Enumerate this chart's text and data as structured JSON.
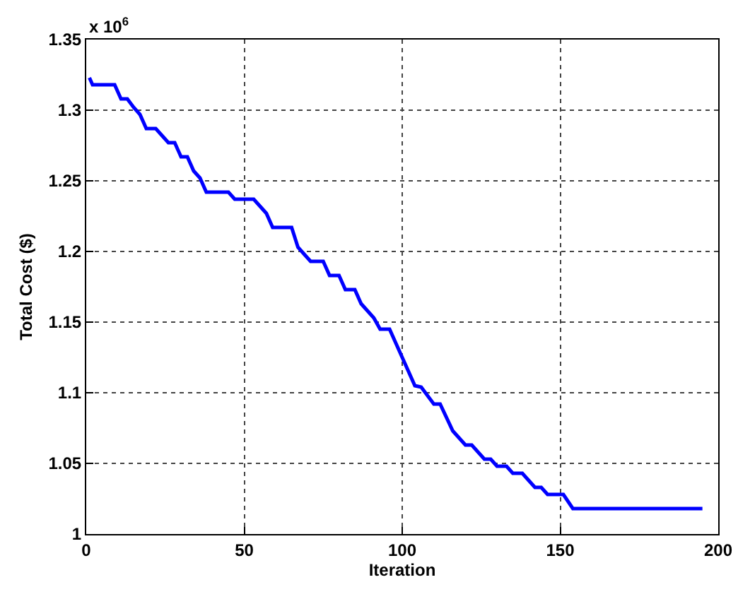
{
  "chart_data": {
    "type": "line",
    "xlabel": "Iteration",
    "ylabel": "Total Cost ($)",
    "annotations": [
      "x 10$^{6}$"
    ],
    "x": [
      1,
      2,
      9,
      11,
      13,
      15,
      17,
      19,
      22,
      24,
      26,
      28,
      30,
      32,
      34,
      36,
      38,
      45,
      47,
      53,
      55,
      57,
      59,
      65,
      67,
      69,
      71,
      75,
      77,
      80,
      82,
      85,
      87,
      89,
      91,
      93,
      96,
      100,
      104,
      106,
      108,
      110,
      112,
      116,
      118,
      120,
      122,
      126,
      128,
      130,
      133,
      135,
      138,
      140,
      142,
      144,
      146,
      151,
      154,
      195
    ],
    "series": [
      {
        "color": "#0000ff",
        "values": [
          1.323,
          1.318,
          1.318,
          1.308,
          1.308,
          1.302,
          1.297,
          1.287,
          1.287,
          1.282,
          1.277,
          1.277,
          1.267,
          1.267,
          1.257,
          1.252,
          1.242,
          1.242,
          1.237,
          1.237,
          1.232,
          1.227,
          1.217,
          1.217,
          1.203,
          1.198,
          1.193,
          1.193,
          1.183,
          1.183,
          1.173,
          1.173,
          1.163,
          1.158,
          1.153,
          1.145,
          1.145,
          1.125,
          1.105,
          1.104,
          1.098,
          1.092,
          1.092,
          1.073,
          1.068,
          1.063,
          1.063,
          1.053,
          1.053,
          1.048,
          1.048,
          1.043,
          1.043,
          1.038,
          1.033,
          1.033,
          1.028,
          1.028,
          1.018,
          1.018
        ]
      }
    ],
    "xlim": [
      0,
      200
    ],
    "xticks": [
      0,
      50,
      100,
      150,
      200
    ],
    "ylim": [
      1,
      1.35
    ],
    "yticks": [
      1,
      1.05,
      1.1,
      1.15,
      1.2,
      1.25,
      1.3,
      1.35
    ],
    "grid": true,
    "marker": "none",
    "line_style": "solid"
  }
}
